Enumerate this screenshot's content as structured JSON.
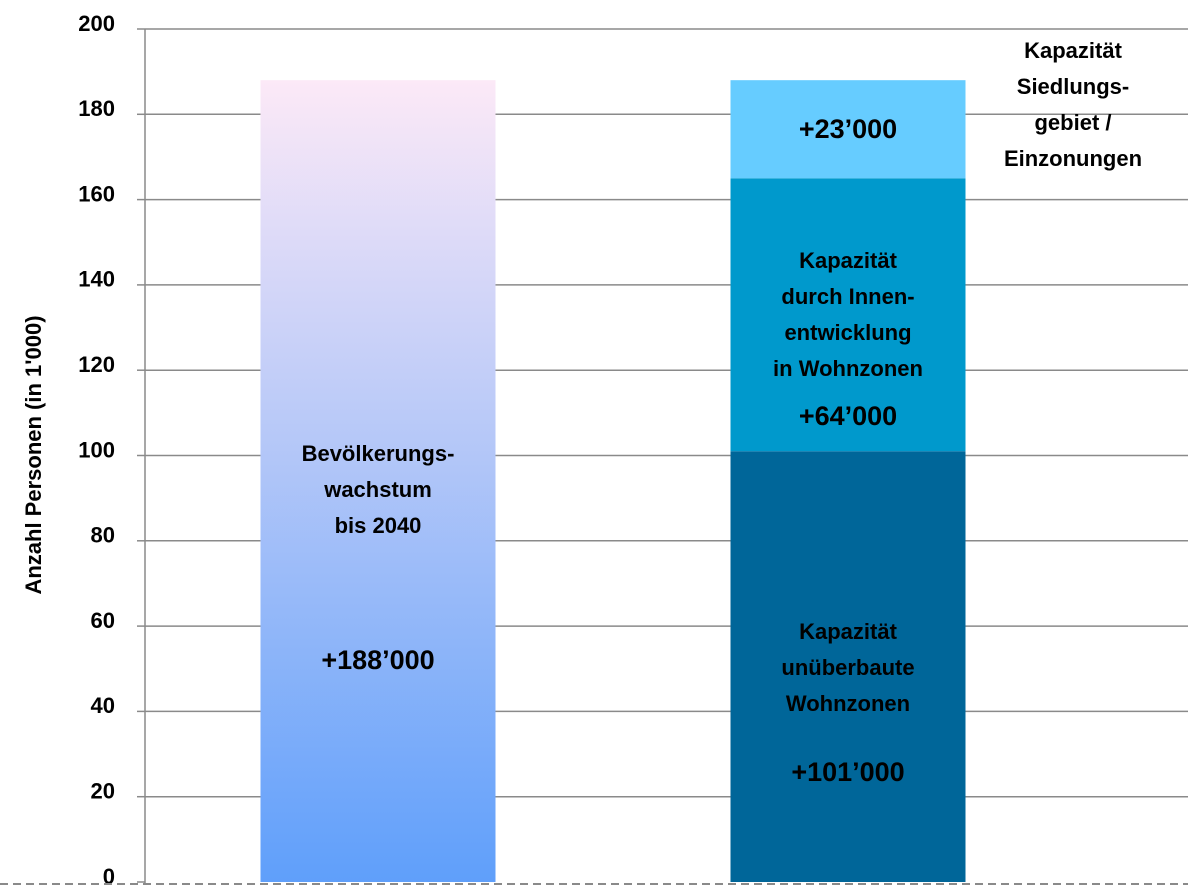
{
  "chart_data": {
    "type": "stacked-bar",
    "y_label": "Anzahl Personen (in 1'000)",
    "categories": [
      null,
      null
    ],
    "ylim": [
      0,
      200
    ],
    "yticks": [
      0,
      20,
      40,
      60,
      80,
      100,
      120,
      140,
      160,
      180,
      200
    ],
    "grid": true,
    "series": [
      {
        "name": [
          "Bevölkerungs-",
          "wachstum",
          "bis 2040"
        ],
        "gradient": [
          "#fce9f7",
          "#5f9ffa"
        ],
        "values": [
          188,
          null
        ],
        "value_labels": [
          "+188’000",
          null
        ]
      },
      {
        "name": [
          "Kapazität",
          "unüberbaute",
          "Wohnzonen"
        ],
        "color": "#006699",
        "values": [
          null,
          101
        ],
        "value_labels": [
          null,
          "+101’000"
        ]
      },
      {
        "name": [
          "Kapazität",
          "durch Innen-",
          "entwicklung",
          "in Wohnzonen"
        ],
        "color": "#0099cc",
        "values": [
          null,
          64
        ],
        "value_labels": [
          null,
          "+64’000"
        ]
      },
      {
        "name": [
          "Kapazität",
          "Siedlungs-",
          "gebiet  /",
          "Einzonungen"
        ],
        "color": "#66ccff",
        "values": [
          null,
          23
        ],
        "value_labels": [
          null,
          "+23’000"
        ]
      }
    ]
  }
}
